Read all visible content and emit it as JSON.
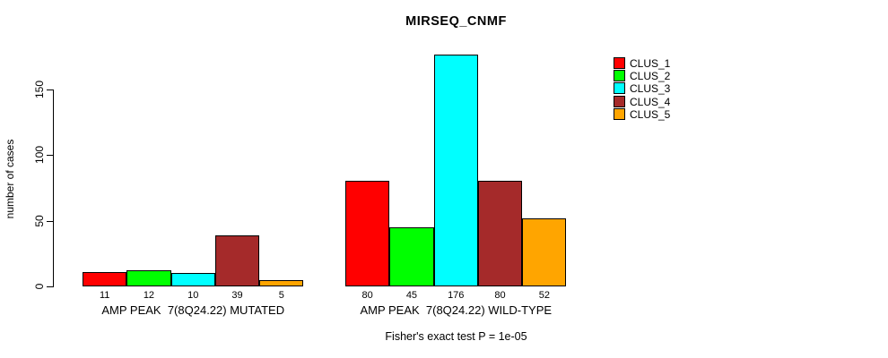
{
  "chart_data": {
    "type": "bar",
    "title": "MIRSEQ_CNMF",
    "ylabel": "number of cases",
    "xlabel": "",
    "yticks": [
      0,
      50,
      100,
      150
    ],
    "ylim": [
      0,
      176
    ],
    "grid": false,
    "legend_position": "top-right",
    "bar_border_color": "#000000",
    "colors": [
      "#ff0000",
      "#00ff00",
      "#00ffff",
      "#a52a2a",
      "#ffa500"
    ],
    "legend": [
      "CLUS_1",
      "CLUS_2",
      "CLUS_3",
      "CLUS_4",
      "CLUS_5"
    ],
    "groups": [
      {
        "label": "AMP PEAK  7(8Q24.22) MUTATED",
        "values": [
          11,
          12,
          10,
          39,
          5
        ]
      },
      {
        "label": "AMP PEAK  7(8Q24.22) WILD-TYPE",
        "values": [
          80,
          45,
          176,
          80,
          52
        ]
      }
    ],
    "annotation": "Fisher's exact test P = 1e-05"
  }
}
